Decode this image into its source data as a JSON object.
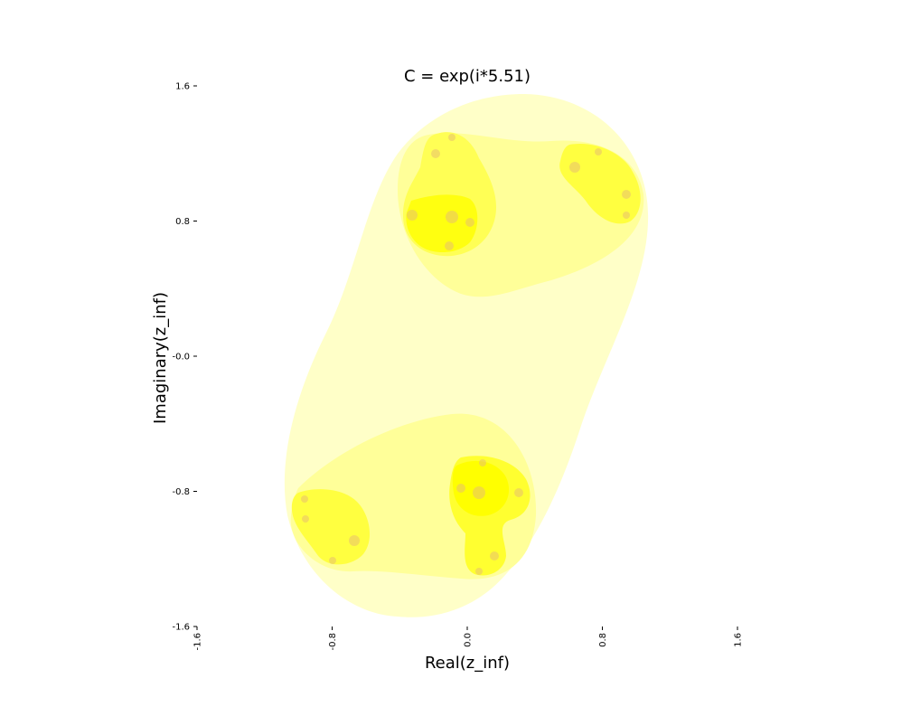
{
  "chart_data": {
    "type": "heatmap",
    "title": "C = exp(i*5.51)",
    "xlabel": "Real(z_inf)",
    "ylabel": "Imaginary(z_inf)",
    "xlim": [
      -1.6,
      1.6
    ],
    "ylim": [
      -1.6,
      1.6
    ],
    "xticks": [
      "-1.6",
      "-0.8",
      "0.0",
      "0.8",
      "1.6"
    ],
    "yticks": [
      "1.6",
      "0.8",
      "-0.0",
      "-0.8",
      "-1.6"
    ],
    "grid": false,
    "colormap": "yellow-orange",
    "colors": {
      "outer": "#ffffc8",
      "mid": "#ffff80",
      "inner": "#ffff00",
      "core": "#e8b060"
    }
  }
}
